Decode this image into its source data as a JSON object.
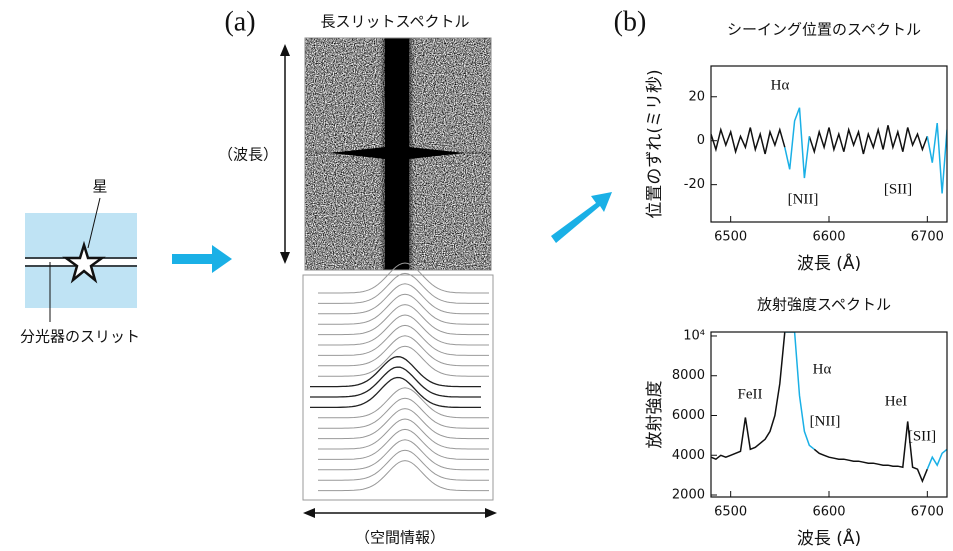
{
  "diagram": {
    "star_label": "星",
    "slit_label": "分光器のスリット",
    "panel_a": "(a)",
    "panel_a_title": "長スリットスペクトル",
    "wavelength_label": "（波長）",
    "spatial_label": "（空間情報）",
    "panel_b": "(b)"
  },
  "chart_data": [
    {
      "type": "line",
      "title": "シーイング位置のスペクトル",
      "xlabel": "波長 (Å)",
      "ylabel": "位置のずれ(ミリ秒)",
      "x": [
        6480,
        6485,
        6490,
        6495,
        6500,
        6505,
        6510,
        6515,
        6520,
        6525,
        6530,
        6535,
        6540,
        6545,
        6550,
        6555,
        6560,
        6565,
        6570,
        6575,
        6580,
        6585,
        6590,
        6595,
        6600,
        6605,
        6610,
        6615,
        6620,
        6625,
        6630,
        6635,
        6640,
        6645,
        6650,
        6655,
        6660,
        6665,
        6670,
        6675,
        6680,
        6685,
        6690,
        6695,
        6700,
        6705,
        6710,
        6715,
        6720
      ],
      "xlim": [
        6480,
        6720
      ],
      "xticks": [
        6500,
        6600,
        6700
      ],
      "ylim": [
        -37,
        34
      ],
      "yticks": [
        -20,
        0,
        20
      ],
      "series": [
        {
          "color": "#111111",
          "values": [
            3,
            -4,
            5,
            -2,
            4,
            -5,
            2,
            -3,
            6,
            -4,
            3,
            -6,
            4,
            -2,
            5,
            -3,
            null,
            null,
            null,
            null,
            2,
            -5,
            4,
            -3,
            6,
            -4,
            3,
            -5,
            5,
            -2,
            4,
            -6,
            3,
            -3,
            5,
            -4,
            7,
            -3,
            4,
            -5,
            6,
            -2,
            3,
            -4,
            2,
            null,
            null,
            null,
            null
          ]
        },
        {
          "color": "#1ab0e6",
          "values": [
            null,
            null,
            null,
            null,
            null,
            null,
            null,
            null,
            null,
            null,
            null,
            null,
            null,
            null,
            null,
            -3,
            -13,
            9,
            15,
            -17,
            2,
            null,
            null,
            null,
            null,
            null,
            null,
            null,
            null,
            null,
            null,
            null,
            null,
            null,
            null,
            null,
            null,
            null,
            null,
            null,
            null,
            null,
            null,
            null,
            2,
            -10,
            8,
            -24,
            5
          ]
        }
      ],
      "annotations": [
        "Hα",
        "[NII]",
        "[SII]"
      ]
    },
    {
      "type": "line",
      "title": "放射強度スペクトル",
      "xlabel": "波長 (Å)",
      "ylabel": "放射強度",
      "x": [
        6480,
        6485,
        6490,
        6495,
        6500,
        6505,
        6510,
        6515,
        6520,
        6525,
        6530,
        6535,
        6540,
        6545,
        6550,
        6555,
        6560,
        6565,
        6570,
        6575,
        6580,
        6585,
        6590,
        6595,
        6600,
        6605,
        6610,
        6615,
        6620,
        6625,
        6630,
        6635,
        6640,
        6645,
        6650,
        6655,
        6660,
        6665,
        6670,
        6675,
        6680,
        6685,
        6690,
        6695,
        6700,
        6705,
        6710,
        6715,
        6720
      ],
      "xlim": [
        6480,
        6720
      ],
      "xticks": [
        6500,
        6600,
        6700
      ],
      "ylim": [
        1900,
        10200
      ],
      "yticks": [
        2000,
        4000,
        6000,
        8000,
        {
          "value": 10000,
          "label": "10⁴"
        }
      ],
      "series": [
        {
          "color": "#111111",
          "values": [
            3900,
            3800,
            4000,
            3900,
            4000,
            4100,
            4200,
            5900,
            4300,
            4400,
            4600,
            4800,
            5200,
            6000,
            7600,
            10200,
            null,
            null,
            null,
            null,
            null,
            4300,
            4100,
            4000,
            3900,
            3850,
            3800,
            3800,
            3750,
            3700,
            3700,
            3650,
            3600,
            3600,
            3550,
            3500,
            3500,
            3450,
            3450,
            3400,
            5700,
            3400,
            3300,
            2700,
            3300,
            null,
            null,
            null,
            null
          ]
        },
        {
          "color": "#1ab0e6",
          "values": [
            null,
            null,
            null,
            null,
            null,
            null,
            null,
            null,
            null,
            null,
            null,
            null,
            null,
            null,
            null,
            10200,
            10200,
            10200,
            7000,
            5200,
            4500,
            4300,
            null,
            null,
            null,
            null,
            null,
            null,
            null,
            null,
            null,
            null,
            null,
            null,
            null,
            null,
            null,
            null,
            null,
            null,
            null,
            null,
            null,
            null,
            3300,
            3900,
            3500,
            4100,
            4300
          ]
        }
      ],
      "annotations": [
        "FeII",
        "Hα",
        "[NII]",
        "HeI",
        "[SII]"
      ]
    }
  ]
}
